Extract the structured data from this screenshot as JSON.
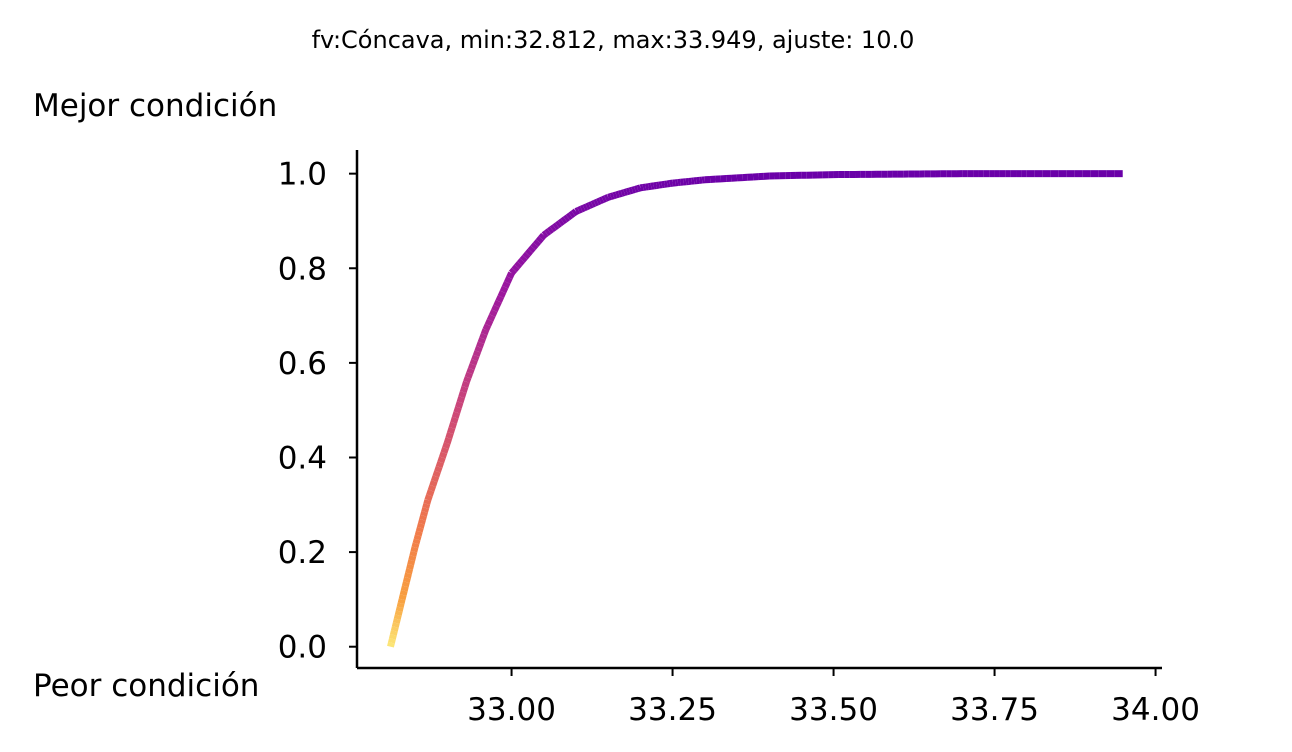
{
  "chart_data": {
    "type": "line",
    "title": "fv:Cóncava, min:32.812, max:33.949, ajuste: 10.0",
    "annotations": {
      "top": "Mejor condición",
      "bottom": "Peor condición"
    },
    "xlabel": "",
    "ylabel": "",
    "xlim": [
      32.76,
      34.01
    ],
    "ylim": [
      -0.045,
      1.05
    ],
    "x_ticks": [
      33.0,
      33.25,
      33.5,
      33.75,
      34.0
    ],
    "x_tick_labels": [
      "33.00",
      "33.25",
      "33.50",
      "33.75",
      "34.00"
    ],
    "y_ticks": [
      0.0,
      0.2,
      0.4,
      0.6,
      0.8,
      1.0
    ],
    "y_tick_labels": [
      "0.0",
      "0.2",
      "0.4",
      "0.6",
      "0.8",
      "1.0"
    ],
    "grid": false,
    "colormap": "plasma (high-value segments purple, low-value segments yellow)",
    "series": [
      {
        "x": [
          32.812,
          32.83,
          32.85,
          32.87,
          32.9,
          32.93,
          32.96,
          33.0,
          33.05,
          33.1,
          33.15,
          33.2,
          33.25,
          33.3,
          33.4,
          33.5,
          33.6,
          33.7,
          33.8,
          33.949
        ],
        "y": [
          0.0,
          0.1,
          0.21,
          0.31,
          0.43,
          0.56,
          0.67,
          0.79,
          0.87,
          0.92,
          0.95,
          0.97,
          0.98,
          0.987,
          0.995,
          0.998,
          0.999,
          1.0,
          1.0,
          1.0
        ]
      }
    ]
  }
}
